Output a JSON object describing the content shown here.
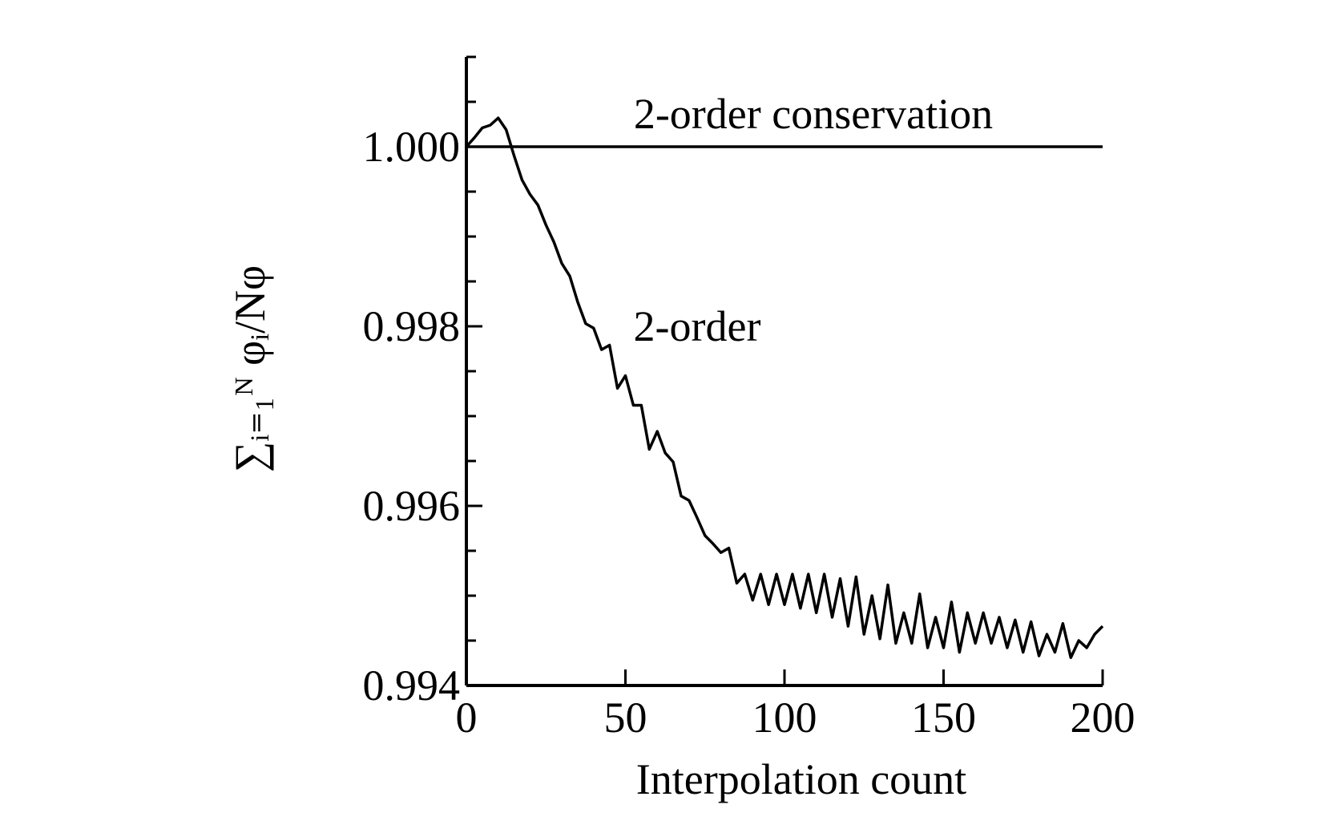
{
  "chart_data": {
    "type": "line",
    "xlabel": "Interpolation count",
    "ylabel": "∑ᵢ₌₁ᴺ φᵢ/Nφ",
    "xlim": [
      0,
      200
    ],
    "xticks": [
      0,
      50,
      100,
      150,
      200
    ],
    "ylim": [
      0.994,
      1.001
    ],
    "yticks": [
      0.994,
      0.996,
      0.998,
      {
        "value": 1,
        "label": "1.000"
      }
    ],
    "y_minor_ticks": [
      0.9945,
      0.995,
      0.9955,
      0.9965,
      0.997,
      0.9975,
      0.9985,
      0.999,
      0.9995,
      1.0005,
      1.001
    ],
    "grid": false,
    "series": [
      {
        "name": "2-order conservation",
        "color": "#000000",
        "x": [
          0,
          200
        ],
        "values": [
          1,
          1
        ]
      },
      {
        "name": "2-order",
        "color": "#000000",
        "x": [
          0,
          2.5,
          5,
          7.5,
          10,
          12.5,
          15,
          17.5,
          20,
          22.5,
          25,
          27.5,
          30,
          32.5,
          35,
          37.5,
          40,
          42.5,
          45,
          47.5,
          50,
          52.5,
          55,
          57.5,
          60,
          62.5,
          65,
          67.5,
          70,
          72.5,
          75,
          77.5,
          80,
          82.5,
          85,
          87.5,
          90,
          92.5,
          95,
          97.5,
          100,
          102.5,
          105,
          107.5,
          110,
          112.5,
          115,
          117.5,
          120,
          122.5,
          125,
          127.5,
          130,
          132.5,
          135,
          137.5,
          140,
          142.5,
          145,
          147.5,
          150,
          152.5,
          155,
          157.5,
          160,
          162.5,
          165,
          167.5,
          170,
          172.5,
          175,
          177.5,
          180,
          182.5,
          185,
          187.5,
          190,
          192.5,
          195,
          197.5,
          200
        ],
        "values": [
          1,
          1.0001,
          1.00021,
          1.00024,
          1.00032,
          1.00019,
          0.9999,
          0.99963,
          0.99947,
          0.99935,
          0.99913,
          0.99894,
          0.9987,
          0.99856,
          0.99827,
          0.99803,
          0.99798,
          0.99774,
          0.99779,
          0.99731,
          0.99745,
          0.99712,
          0.99712,
          0.99663,
          0.99683,
          0.99659,
          0.99649,
          0.99611,
          0.99606,
          0.99587,
          0.99567,
          0.99558,
          0.99548,
          0.99553,
          0.99514,
          0.99524,
          0.99495,
          0.99524,
          0.9949,
          0.99524,
          0.9949,
          0.99524,
          0.99486,
          0.99524,
          0.99481,
          0.99524,
          0.99476,
          0.99519,
          0.99466,
          0.99521,
          0.99457,
          0.995,
          0.99452,
          0.99512,
          0.99447,
          0.99481,
          0.99447,
          0.99502,
          0.99442,
          0.99476,
          0.99442,
          0.99493,
          0.99437,
          0.99481,
          0.99447,
          0.99481,
          0.99447,
          0.99476,
          0.99442,
          0.99473,
          0.99437,
          0.99471,
          0.99433,
          0.99457,
          0.99437,
          0.99469,
          0.99431,
          0.9945,
          0.99442,
          0.99457,
          0.99466
        ]
      }
    ]
  }
}
